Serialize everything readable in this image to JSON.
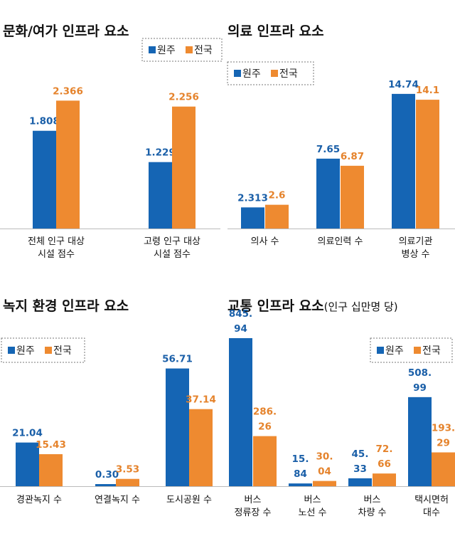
{
  "colors": {
    "wonju": "#1565b4",
    "national": "#ee8a30",
    "wonju_text": "#1a5fa8",
    "national_text": "#e5832c",
    "axis": "#bbbbbb"
  },
  "legend_labels": [
    "원주",
    "전국"
  ],
  "chart_data": [
    {
      "type": "bar",
      "title": "문화/여가 인프라 요소",
      "subtitle": "",
      "categories": [
        [
          "전체 인구 대상",
          "시설 점수"
        ],
        [
          "고령 인구 대상",
          "시설 점수"
        ]
      ],
      "series": [
        {
          "name": "원주",
          "values": [
            1.808,
            1.229
          ],
          "labels": [
            [
              "1.808"
            ],
            [
              "1.229"
            ]
          ]
        },
        {
          "name": "전국",
          "values": [
            2.366,
            2.256
          ],
          "labels": [
            [
              "2.366"
            ],
            [
              "2.256"
            ]
          ]
        }
      ],
      "ylim": [
        0,
        2.7
      ],
      "legend": "top-right"
    },
    {
      "type": "bar",
      "title": "의료 인프라 요소",
      "subtitle": "",
      "categories": [
        [
          "의사 수"
        ],
        [
          "의료인력 수"
        ],
        [
          "의료기관",
          "병상 수"
        ]
      ],
      "series": [
        {
          "name": "원주",
          "values": [
            2.313,
            7.65,
            14.74
          ],
          "labels": [
            [
              "2.313"
            ],
            [
              "7.65"
            ],
            [
              "14.74"
            ]
          ]
        },
        {
          "name": "전국",
          "values": [
            2.6,
            6.87,
            14.1
          ],
          "labels": [
            [
              "2.6"
            ],
            [
              "6.87"
            ],
            [
              "14.1"
            ]
          ]
        }
      ],
      "ylim": [
        0,
        15.9
      ],
      "legend": "top-left"
    },
    {
      "type": "bar",
      "title": "녹지 환경 인프라 요소",
      "subtitle": "",
      "categories": [
        [
          "경관녹지 수"
        ],
        [
          "연결녹지 수"
        ],
        [
          "도시공원 수"
        ]
      ],
      "series": [
        {
          "name": "원주",
          "values": [
            21.04,
            0.3,
            56.71
          ],
          "labels": [
            [
              "21.04"
            ],
            [
              "0.30"
            ],
            [
              "56.71"
            ]
          ]
        },
        {
          "name": "전국",
          "values": [
            15.43,
            3.53,
            37.14
          ],
          "labels": [
            [
              "15.43"
            ],
            [
              "3.53"
            ],
            [
              "37.14"
            ]
          ]
        }
      ],
      "ylim": [
        0,
        60
      ],
      "legend": "top-left"
    },
    {
      "type": "bar",
      "title": "교통 인프라 요소",
      "subtitle": "(인구 십만명 당)",
      "categories": [
        [
          "버스",
          "정류장 수"
        ],
        [
          "버스",
          "노선 수"
        ],
        [
          "버스",
          "차량 수"
        ],
        [
          "택시면허",
          "대수"
        ]
      ],
      "series": [
        {
          "name": "원주",
          "values": [
            845.94,
            15.84,
            45.33,
            508.99
          ],
          "labels": [
            [
              "845.",
              "94"
            ],
            [
              "15.",
              "84"
            ],
            [
              "45.",
              "33"
            ],
            [
              "508.",
              "99"
            ]
          ]
        },
        {
          "name": "전국",
          "values": [
            286.26,
            30.04,
            72.66,
            193.29
          ],
          "labels": [
            [
              "286.",
              "26"
            ],
            [
              "30.",
              "04"
            ],
            [
              "72.",
              "66"
            ],
            [
              "193.",
              "29"
            ]
          ]
        }
      ],
      "ylim": [
        0,
        845.94
      ],
      "legend": "top-right"
    }
  ]
}
